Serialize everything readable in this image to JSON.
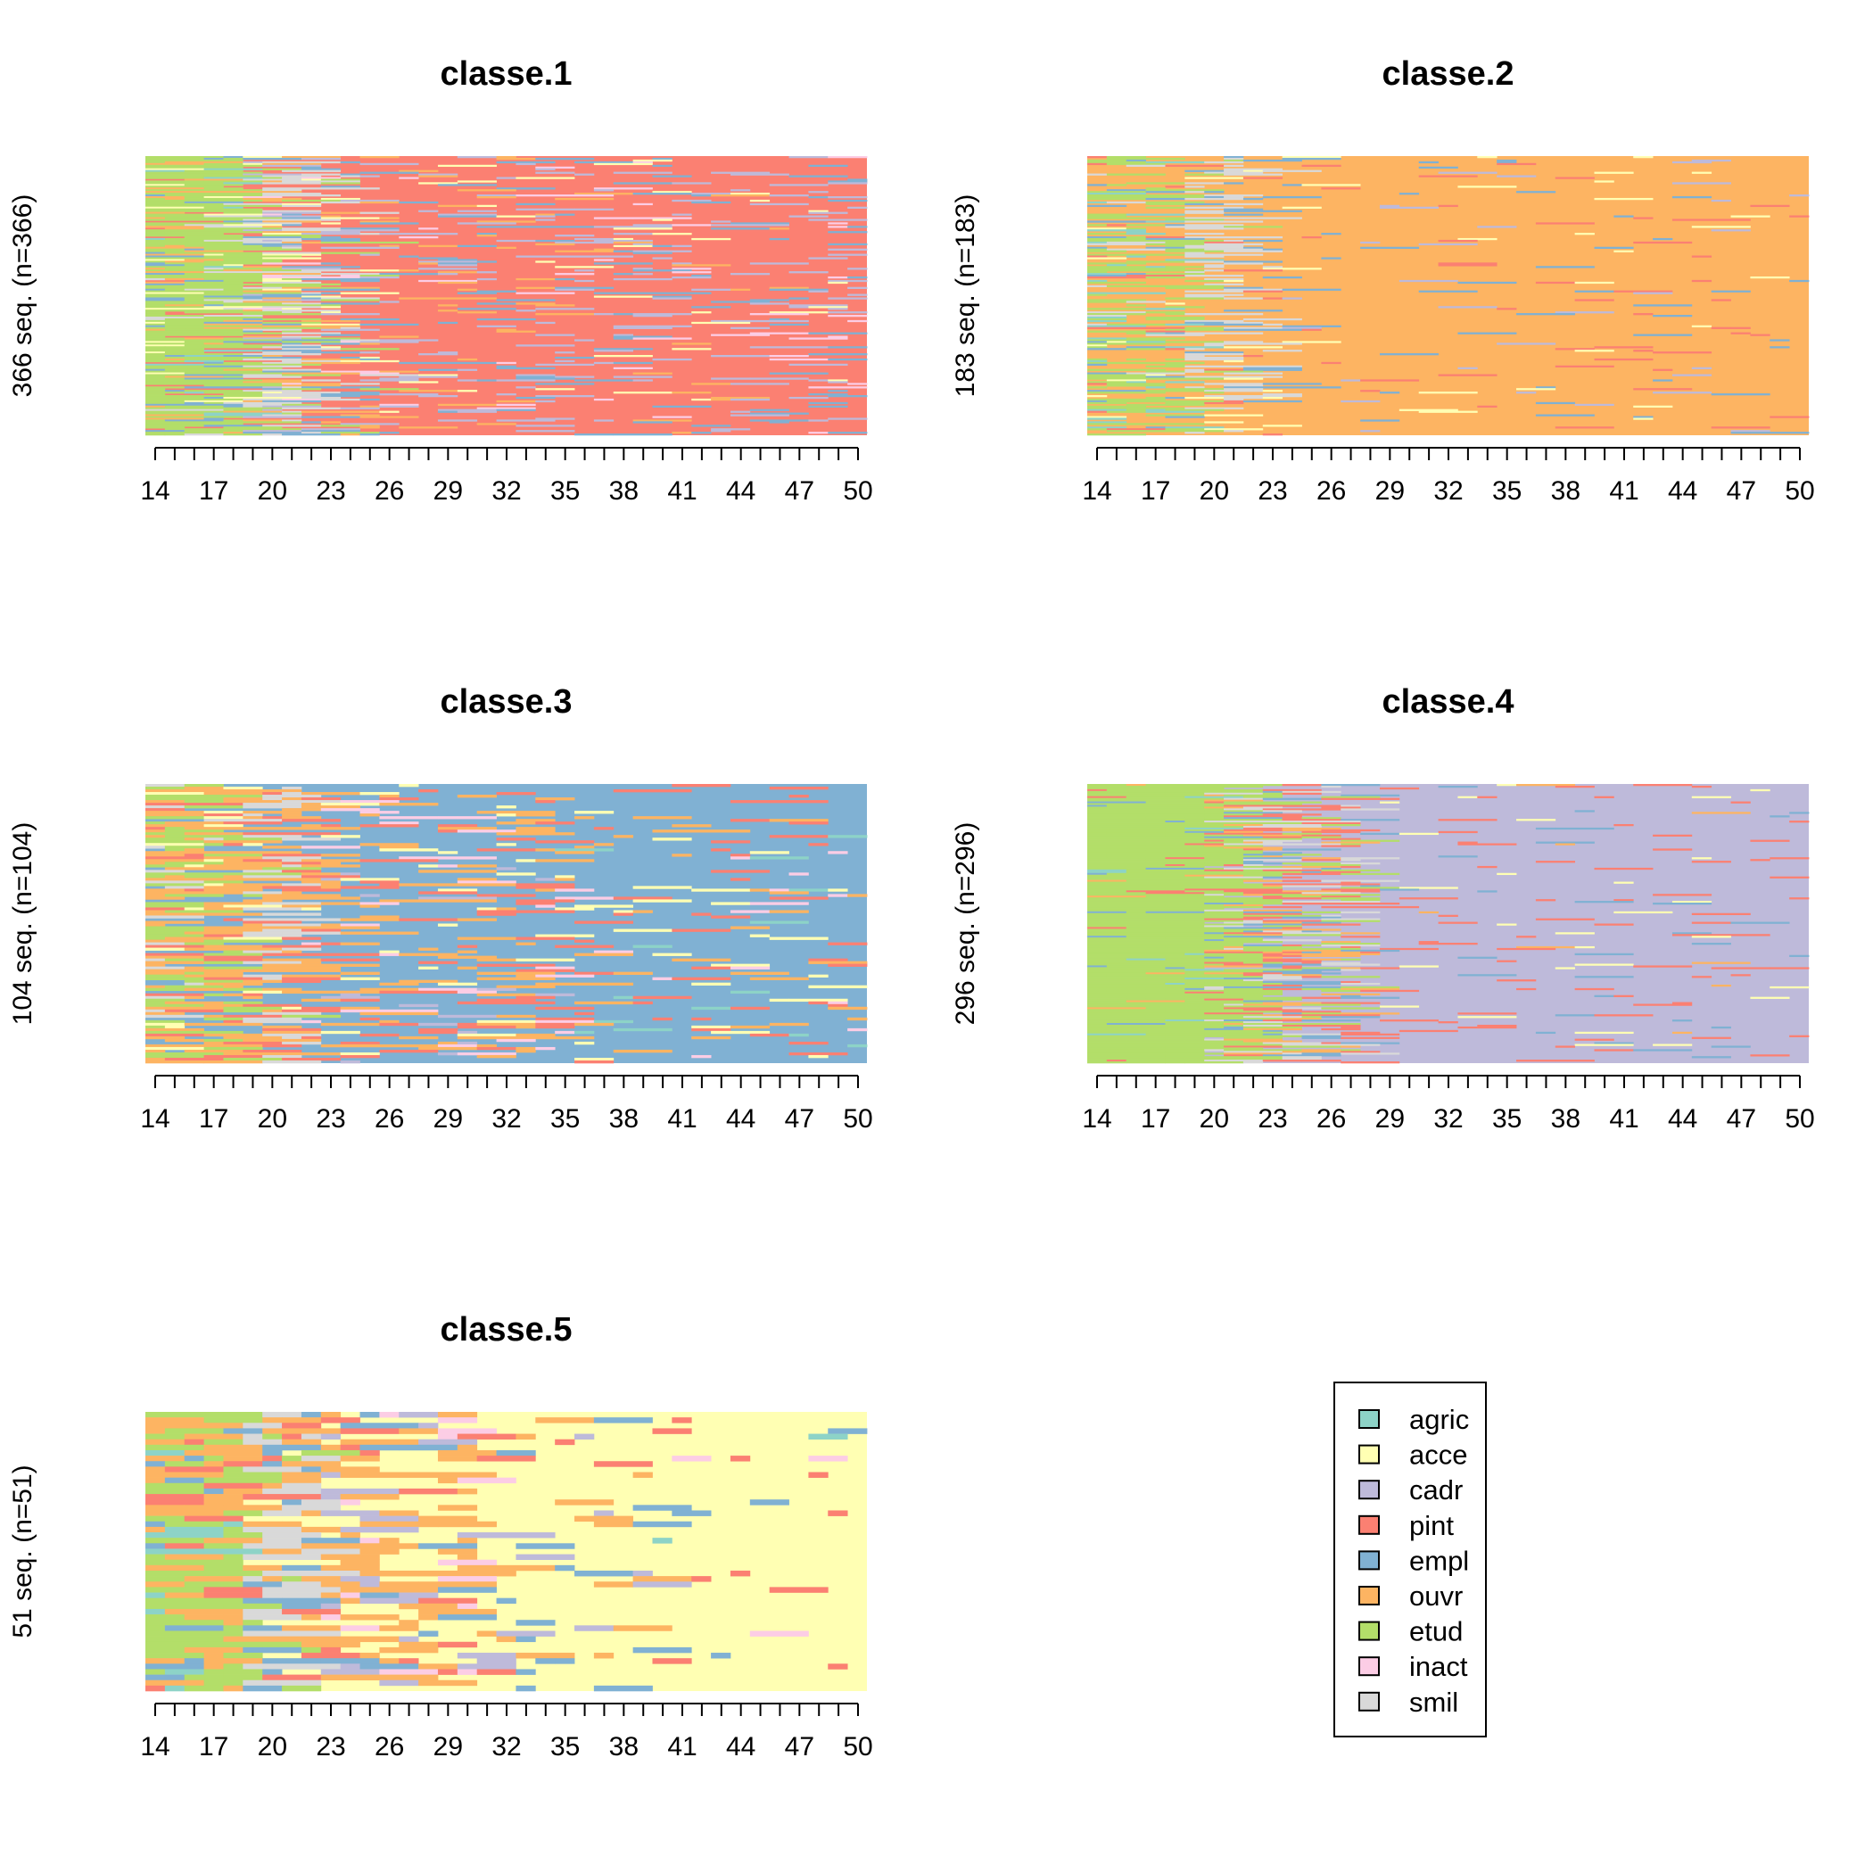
{
  "chart_data": [
    {
      "type": "heatmap",
      "title": "classe.1",
      "ylabel": "366 seq. (n=366)",
      "n_sequences": 366,
      "xlim": [
        14,
        50
      ],
      "x_ticks": [
        14,
        17,
        20,
        23,
        26,
        29,
        32,
        35,
        38,
        41,
        44,
        47,
        50
      ],
      "dominant_state": "pint",
      "profile": [
        {
          "from": 14,
          "to": 19,
          "mix": {
            "etud": 0.62,
            "ouvr": 0.12,
            "empl": 0.08,
            "agric": 0.05,
            "pint": 0.05,
            "acce": 0.04,
            "smil": 0.04
          }
        },
        {
          "from": 19,
          "to": 22,
          "mix": {
            "smil": 0.3,
            "etud": 0.18,
            "pint": 0.18,
            "empl": 0.12,
            "ouvr": 0.1,
            "cadr": 0.05,
            "acce": 0.04,
            "inact": 0.03
          }
        },
        {
          "from": 22,
          "to": 26,
          "mix": {
            "pint": 0.45,
            "empl": 0.15,
            "smil": 0.1,
            "ouvr": 0.1,
            "cadr": 0.08,
            "acce": 0.06,
            "etud": 0.03,
            "inact": 0.03
          }
        },
        {
          "from": 26,
          "to": 35,
          "mix": {
            "pint": 0.72,
            "cadr": 0.1,
            "empl": 0.08,
            "ouvr": 0.04,
            "acce": 0.03,
            "inact": 0.03
          }
        },
        {
          "from": 35,
          "to": 51,
          "mix": {
            "pint": 0.72,
            "cadr": 0.13,
            "empl": 0.07,
            "inact": 0.03,
            "acce": 0.03,
            "ouvr": 0.02
          }
        }
      ]
    },
    {
      "type": "heatmap",
      "title": "classe.2",
      "ylabel": "183 seq. (n=183)",
      "n_sequences": 183,
      "xlim": [
        14,
        50
      ],
      "x_ticks": [
        14,
        17,
        20,
        23,
        26,
        29,
        32,
        35,
        38,
        41,
        44,
        47,
        50
      ],
      "dominant_state": "ouvr",
      "profile": [
        {
          "from": 14,
          "to": 19,
          "mix": {
            "etud": 0.35,
            "ouvr": 0.4,
            "agric": 0.08,
            "empl": 0.07,
            "pint": 0.04,
            "smil": 0.03,
            "acce": 0.03
          }
        },
        {
          "from": 19,
          "to": 22,
          "mix": {
            "smil": 0.4,
            "ouvr": 0.38,
            "empl": 0.08,
            "etud": 0.06,
            "pint": 0.04,
            "acce": 0.04
          }
        },
        {
          "from": 22,
          "to": 24,
          "mix": {
            "ouvr": 0.72,
            "smil": 0.1,
            "empl": 0.08,
            "pint": 0.05,
            "acce": 0.05
          }
        },
        {
          "from": 24,
          "to": 51,
          "mix": {
            "ouvr": 0.9,
            "pint": 0.03,
            "empl": 0.03,
            "acce": 0.02,
            "cadr": 0.02
          }
        }
      ]
    },
    {
      "type": "heatmap",
      "title": "classe.3",
      "ylabel": "104 seq. (n=104)",
      "n_sequences": 104,
      "xlim": [
        14,
        50
      ],
      "x_ticks": [
        14,
        17,
        20,
        23,
        26,
        29,
        32,
        35,
        38,
        41,
        44,
        47,
        50
      ],
      "dominant_state": "empl",
      "profile": [
        {
          "from": 14,
          "to": 19,
          "mix": {
            "ouvr": 0.35,
            "etud": 0.3,
            "empl": 0.15,
            "pint": 0.1,
            "smil": 0.05,
            "acce": 0.05
          }
        },
        {
          "from": 19,
          "to": 22,
          "mix": {
            "smil": 0.25,
            "ouvr": 0.3,
            "empl": 0.2,
            "pint": 0.15,
            "etud": 0.05,
            "acce": 0.05
          }
        },
        {
          "from": 22,
          "to": 35,
          "mix": {
            "empl": 0.55,
            "ouvr": 0.2,
            "pint": 0.12,
            "acce": 0.05,
            "cadr": 0.04,
            "inact": 0.04
          }
        },
        {
          "from": 35,
          "to": 51,
          "mix": {
            "empl": 0.78,
            "pint": 0.1,
            "ouvr": 0.05,
            "acce": 0.03,
            "inact": 0.02,
            "agric": 0.02
          }
        }
      ]
    },
    {
      "type": "heatmap",
      "title": "classe.4",
      "ylabel": "296 seq. (n=296)",
      "n_sequences": 296,
      "xlim": [
        14,
        50
      ],
      "x_ticks": [
        14,
        17,
        20,
        23,
        26,
        29,
        32,
        35,
        38,
        41,
        44,
        47,
        50
      ],
      "dominant_state": "cadr",
      "profile": [
        {
          "from": 14,
          "to": 20,
          "mix": {
            "etud": 0.9,
            "ouvr": 0.03,
            "empl": 0.03,
            "pint": 0.02,
            "agric": 0.02
          }
        },
        {
          "from": 20,
          "to": 23,
          "mix": {
            "etud": 0.45,
            "pint": 0.15,
            "smil": 0.15,
            "empl": 0.1,
            "ouvr": 0.08,
            "cadr": 0.07
          }
        },
        {
          "from": 23,
          "to": 28,
          "mix": {
            "cadr": 0.35,
            "pint": 0.2,
            "smil": 0.15,
            "empl": 0.12,
            "etud": 0.1,
            "ouvr": 0.08
          }
        },
        {
          "from": 28,
          "to": 51,
          "mix": {
            "cadr": 0.88,
            "pint": 0.06,
            "empl": 0.03,
            "acce": 0.02,
            "ouvr": 0.01
          }
        }
      ]
    },
    {
      "type": "heatmap",
      "title": "classe.5",
      "ylabel": "51 seq. (n=51)",
      "n_sequences": 51,
      "xlim": [
        14,
        50
      ],
      "x_ticks": [
        14,
        17,
        20,
        23,
        26,
        29,
        32,
        35,
        38,
        41,
        44,
        47,
        50
      ],
      "dominant_state": "acce",
      "profile": [
        {
          "from": 14,
          "to": 19,
          "mix": {
            "etud": 0.45,
            "ouvr": 0.3,
            "empl": 0.1,
            "agric": 0.08,
            "pint": 0.07
          }
        },
        {
          "from": 19,
          "to": 23,
          "mix": {
            "smil": 0.3,
            "ouvr": 0.3,
            "empl": 0.15,
            "pint": 0.1,
            "etud": 0.1,
            "acce": 0.05
          }
        },
        {
          "from": 23,
          "to": 31,
          "mix": {
            "ouvr": 0.35,
            "acce": 0.3,
            "cadr": 0.12,
            "empl": 0.1,
            "pint": 0.08,
            "inact": 0.05
          }
        },
        {
          "from": 31,
          "to": 40,
          "mix": {
            "acce": 0.72,
            "ouvr": 0.12,
            "cadr": 0.08,
            "empl": 0.05,
            "pint": 0.03
          }
        },
        {
          "from": 40,
          "to": 51,
          "mix": {
            "acce": 0.88,
            "pint": 0.04,
            "inact": 0.03,
            "empl": 0.03,
            "agric": 0.02
          }
        }
      ]
    }
  ],
  "legend": {
    "placement": "bottom-right",
    "items": [
      {
        "label": "agric",
        "color": "#8DD3C7"
      },
      {
        "label": "acce",
        "color": "#FFFFB3"
      },
      {
        "label": "cadr",
        "color": "#BEBADA"
      },
      {
        "label": "pint",
        "color": "#FB8072"
      },
      {
        "label": "empl",
        "color": "#80B1D3"
      },
      {
        "label": "ouvr",
        "color": "#FDB462"
      },
      {
        "label": "etud",
        "color": "#B3DE69"
      },
      {
        "label": "inact",
        "color": "#FCCDE5"
      },
      {
        "label": "smil",
        "color": "#D9D9D9"
      }
    ]
  }
}
